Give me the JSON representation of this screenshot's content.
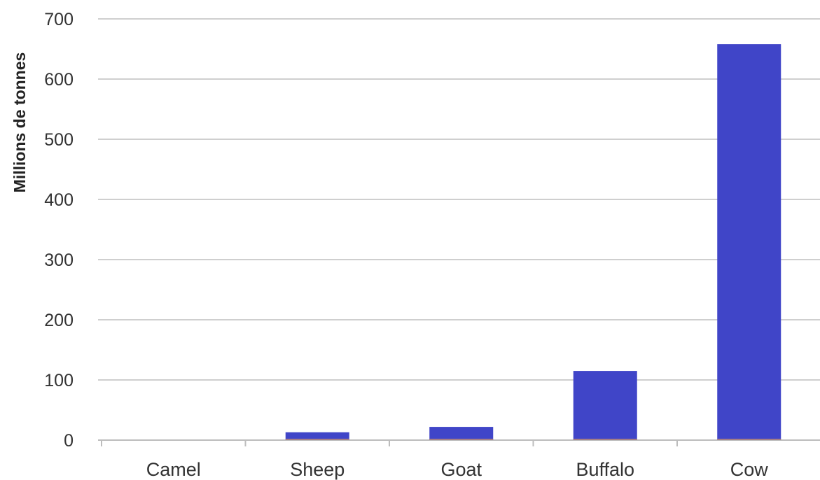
{
  "chart_data": {
    "type": "bar",
    "categories": [
      "Camel",
      "Sheep",
      "Goat",
      "Buffalo",
      "Cow"
    ],
    "values": [
      0,
      13,
      22,
      115,
      658
    ],
    "xlabel": "",
    "ylabel": "Millions de tonnes",
    "ylim": [
      0,
      700
    ],
    "yticks": [
      0,
      100,
      200,
      300,
      400,
      500,
      600,
      700
    ],
    "grid": true,
    "legend": "none",
    "colors": {
      "bar": "#4045c8",
      "bar_baseline_highlight": "#e8a35a",
      "gridline": "#cfcfcf",
      "axis": "#bdbdbd",
      "text": "#333333"
    }
  }
}
